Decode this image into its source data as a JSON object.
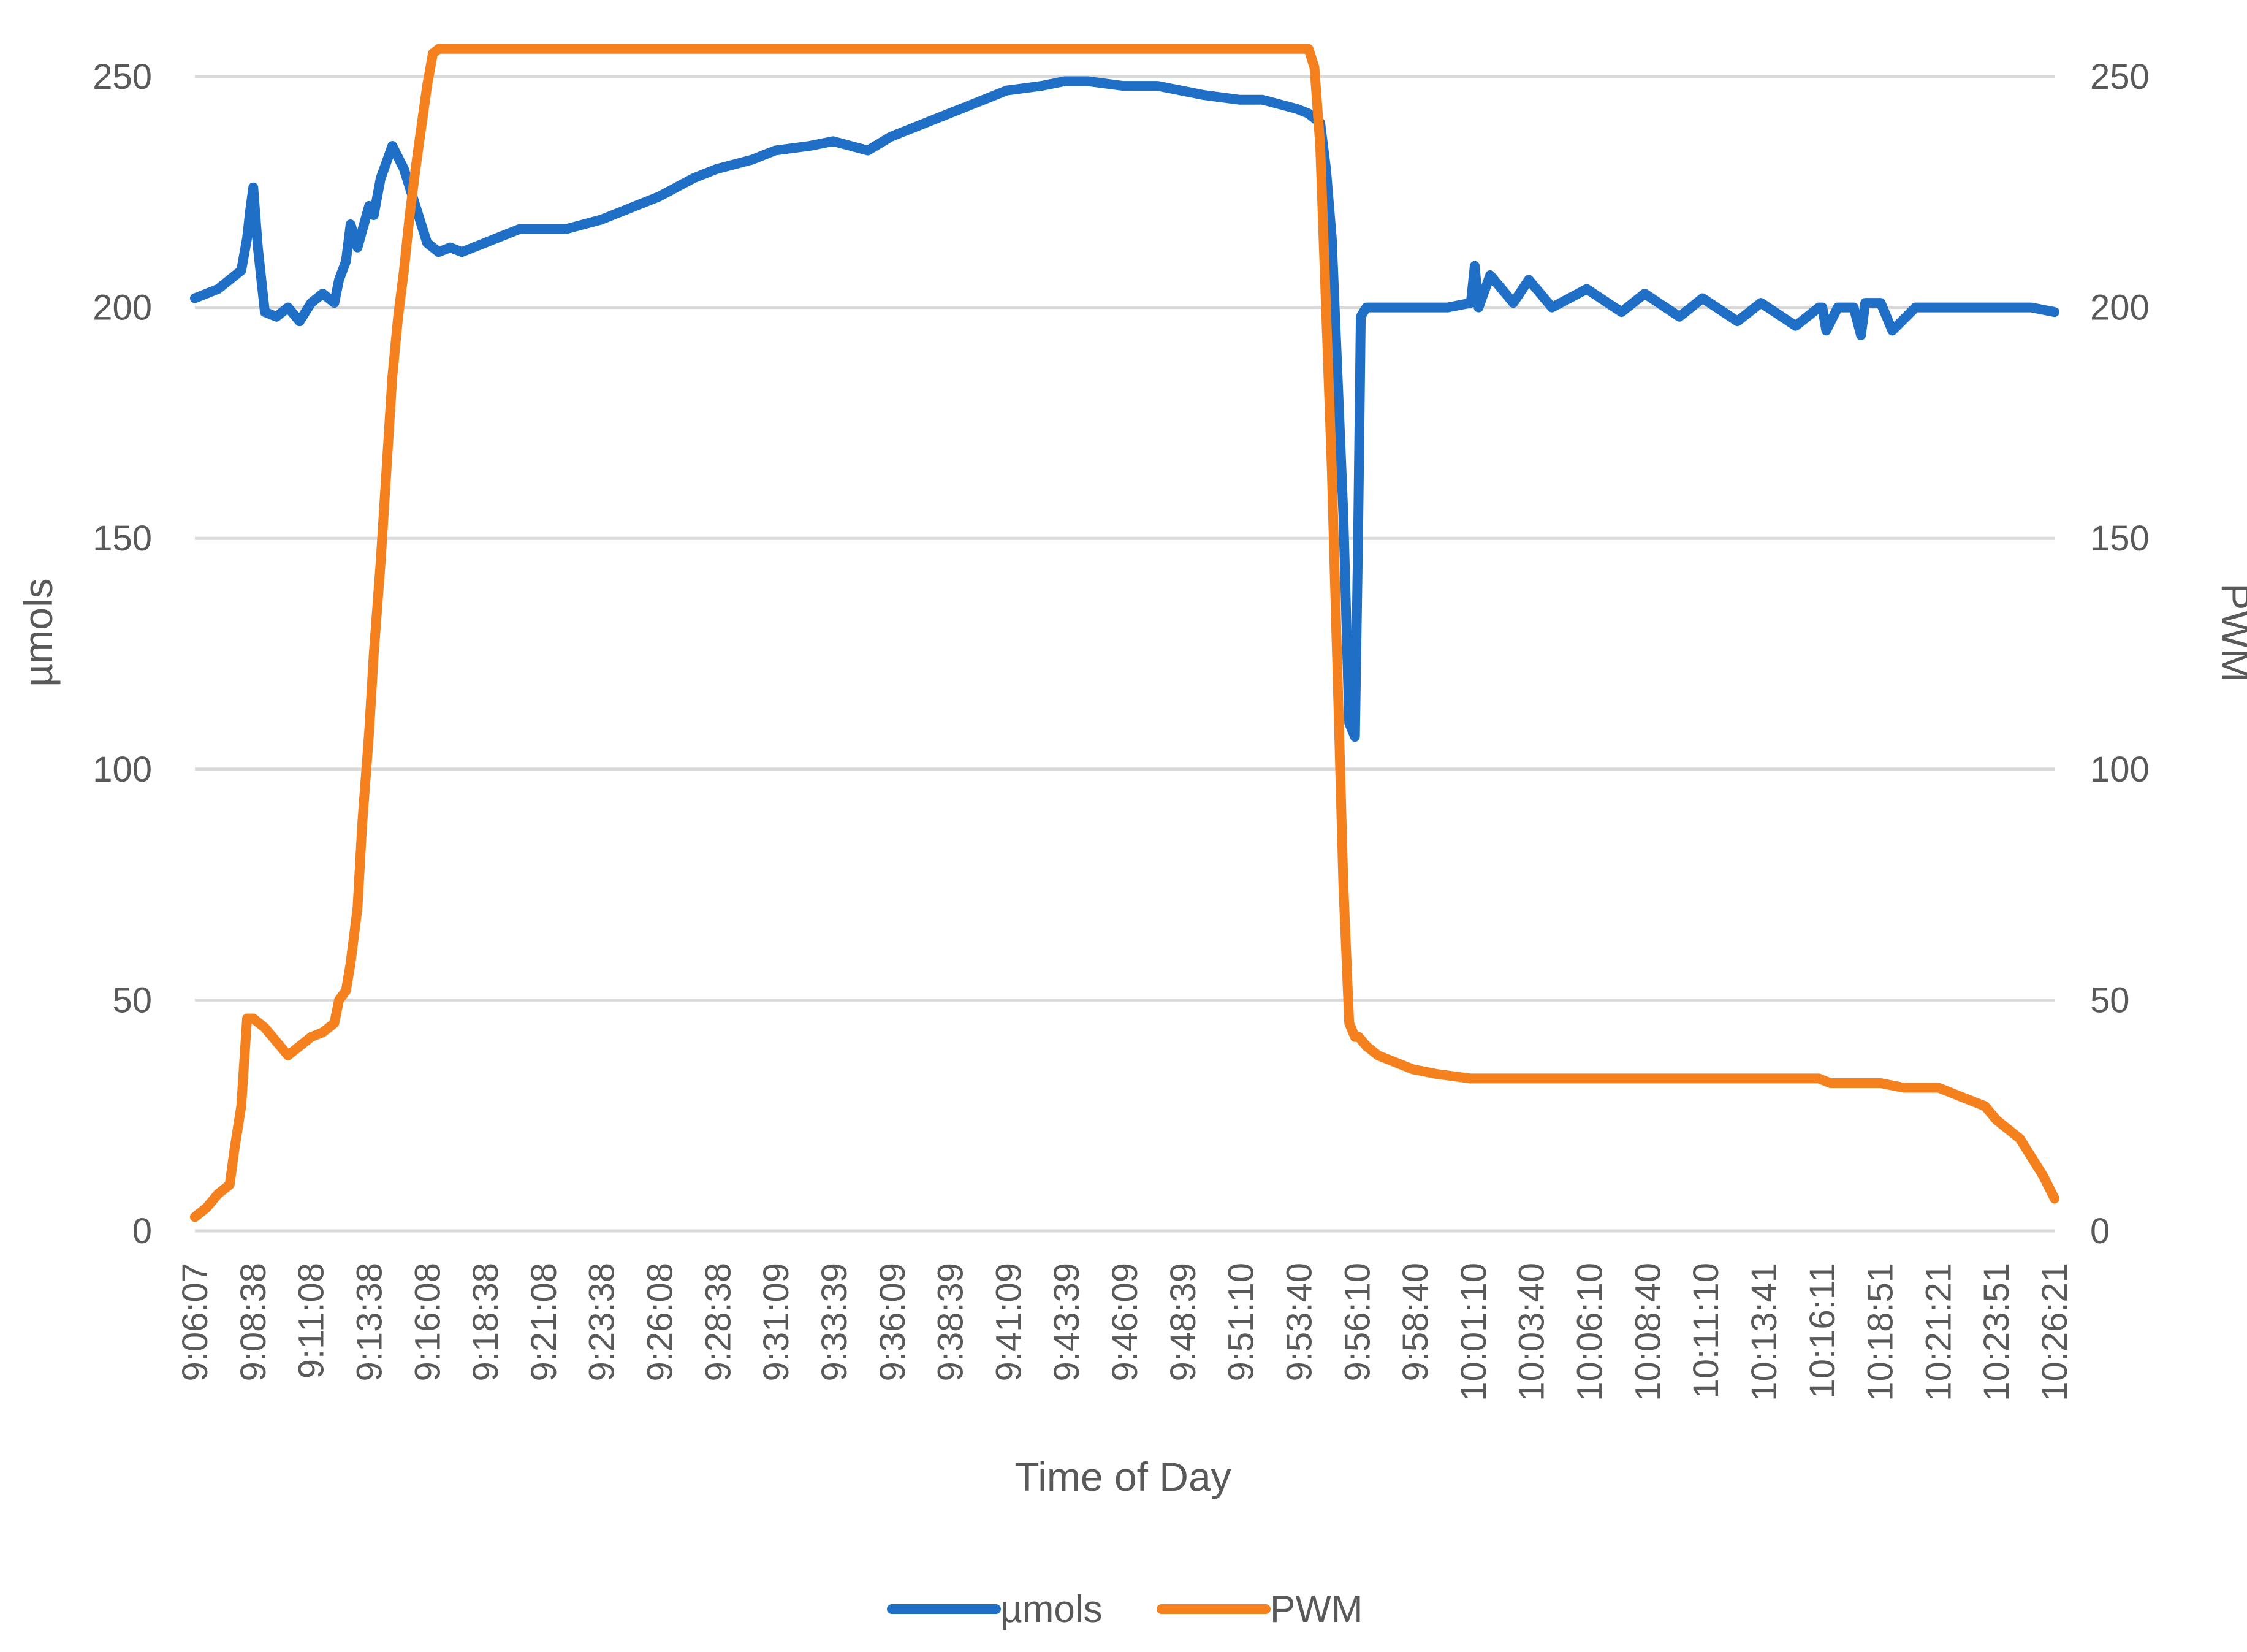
{
  "chart_data": {
    "type": "line",
    "title": "",
    "xlabel": "Time of Day",
    "ylabel": "µmols",
    "y2label": "PWM",
    "ylim": [
      0,
      250
    ],
    "y2lim": [
      0,
      250
    ],
    "yticks": [
      0,
      50,
      100,
      150,
      200,
      250
    ],
    "y2ticks": [
      0,
      50,
      100,
      150,
      200,
      250
    ],
    "grid": true,
    "legend_position": "bottom",
    "xlim_seconds": [
      32767,
      37581
    ],
    "x_tick_labels": [
      "9:06:07",
      "9:08:38",
      "9:11:08",
      "9:13:38",
      "9:16:08",
      "9:18:38",
      "9:21:08",
      "9:23:38",
      "9:26:08",
      "9:28:38",
      "9:31:09",
      "9:33:39",
      "9:36:09",
      "9:38:39",
      "9:41:09",
      "9:43:39",
      "9:46:09",
      "9:48:39",
      "9:51:10",
      "9:53:40",
      "9:56:10",
      "9:58:40",
      "10:01:10",
      "10:03:40",
      "10:06:10",
      "10:08:40",
      "10:11:10",
      "10:13:41",
      "10:16:11",
      "10:18:51",
      "10:21:21",
      "10:23:51",
      "10:26:21"
    ],
    "series": [
      {
        "name": "µmols",
        "axis": "left",
        "color": "#1f6fc6",
        "x": [
          "9:06:07",
          "9:06:37",
          "9:07:07",
          "9:07:37",
          "9:08:07",
          "9:08:22",
          "9:08:30",
          "9:08:38",
          "9:08:50",
          "9:09:08",
          "9:09:38",
          "9:10:08",
          "9:10:38",
          "9:11:08",
          "9:11:38",
          "9:12:08",
          "9:12:20",
          "9:12:38",
          "9:12:50",
          "9:13:08",
          "9:13:38",
          "9:13:50",
          "9:14:08",
          "9:14:38",
          "9:15:08",
          "9:15:38",
          "9:16:08",
          "9:16:38",
          "9:17:08",
          "9:17:38",
          "9:18:08",
          "9:18:38",
          "9:19:08",
          "9:20:08",
          "9:21:08",
          "9:22:08",
          "9:23:38",
          "9:24:38",
          "9:26:08",
          "9:27:38",
          "9:28:38",
          "9:30:09",
          "9:31:09",
          "9:32:39",
          "9:33:39",
          "9:35:09",
          "9:36:09",
          "9:37:39",
          "9:38:39",
          "9:40:09",
          "9:41:09",
          "9:42:39",
          "9:43:39",
          "9:44:39",
          "9:46:09",
          "9:47:39",
          "9:48:39",
          "9:49:39",
          "9:51:10",
          "9:52:10",
          "9:53:40",
          "9:54:10",
          "9:54:40",
          "9:54:55",
          "9:55:10",
          "9:55:25",
          "9:55:40",
          "9:55:55",
          "9:56:10",
          "9:56:18",
          "9:56:25",
          "9:56:32",
          "9:56:40",
          "9:57:10",
          "9:57:40",
          "9:58:40",
          "10:00:10",
          "10:01:10",
          "10:01:20",
          "10:01:30",
          "10:02:00",
          "10:03:00",
          "10:03:40",
          "10:04:40",
          "10:06:10",
          "10:07:40",
          "10:08:40",
          "10:10:10",
          "10:11:10",
          "10:12:40",
          "10:13:41",
          "10:15:11",
          "10:16:11",
          "10:16:20",
          "10:16:30",
          "10:17:00",
          "10:17:41",
          "10:18:00",
          "10:18:11",
          "10:18:51",
          "10:19:21",
          "10:20:21",
          "10:21:21",
          "10:22:21",
          "10:23:51",
          "10:25:21",
          "10:26:21"
        ],
        "values": [
          202,
          203,
          204,
          206,
          208,
          215,
          221,
          226,
          213,
          199,
          198,
          200,
          197,
          201,
          203,
          201,
          206,
          210,
          218,
          213,
          222,
          220,
          228,
          235,
          230,
          222,
          214,
          212,
          213,
          212,
          213,
          214,
          215,
          217,
          217,
          217,
          219,
          221,
          224,
          228,
          230,
          232,
          234,
          235,
          236,
          234,
          237,
          240,
          242,
          245,
          247,
          248,
          249,
          249,
          248,
          248,
          247,
          246,
          245,
          245,
          243,
          242,
          240,
          230,
          215,
          185,
          155,
          110,
          107,
          150,
          198,
          199,
          200,
          200,
          200,
          200,
          200,
          201,
          209,
          200,
          207,
          201,
          206,
          200,
          204,
          199,
          203,
          198,
          202,
          197,
          201,
          196,
          200,
          200,
          195,
          200,
          200,
          194,
          201,
          201,
          195,
          200,
          200,
          200,
          200,
          200,
          199
        ]
      },
      {
        "name": "PWM",
        "axis": "right",
        "color": "#f5801e",
        "x": [
          "9:06:07",
          "9:06:37",
          "9:07:07",
          "9:07:37",
          "9:07:50",
          "9:08:07",
          "9:08:22",
          "9:08:38",
          "9:09:08",
          "9:09:38",
          "9:10:08",
          "9:10:38",
          "9:11:08",
          "9:11:38",
          "9:12:08",
          "9:12:20",
          "9:12:38",
          "9:12:50",
          "9:13:08",
          "9:13:20",
          "9:13:38",
          "9:13:50",
          "9:14:08",
          "9:14:23",
          "9:14:38",
          "9:14:53",
          "9:15:08",
          "9:15:23",
          "9:15:38",
          "9:15:53",
          "9:16:08",
          "9:16:23",
          "9:16:38",
          "9:16:53",
          "9:17:08",
          "9:17:23",
          "9:17:38",
          "9:18:38",
          "9:21:08",
          "9:26:08",
          "9:31:09",
          "9:36:09",
          "9:41:09",
          "9:46:09",
          "9:51:10",
          "9:53:40",
          "9:54:10",
          "9:54:25",
          "9:54:40",
          "9:54:55",
          "9:55:10",
          "9:55:25",
          "9:55:40",
          "9:55:55",
          "9:56:10",
          "9:56:20",
          "9:56:30",
          "9:56:40",
          "9:57:10",
          "9:57:40",
          "9:58:40",
          "9:59:40",
          "10:01:10",
          "10:03:40",
          "10:06:10",
          "10:08:40",
          "10:11:10",
          "10:13:41",
          "10:16:11",
          "10:16:41",
          "10:17:11",
          "10:18:11",
          "10:18:51",
          "10:19:51",
          "10:21:21",
          "10:22:21",
          "10:23:21",
          "10:23:51",
          "10:24:51",
          "10:25:21",
          "10:25:51",
          "10:26:21"
        ],
        "values": [
          3,
          5,
          8,
          10,
          18,
          27,
          46,
          46,
          44,
          41,
          38,
          40,
          42,
          43,
          45,
          50,
          52,
          58,
          70,
          88,
          108,
          125,
          145,
          165,
          185,
          198,
          208,
          220,
          230,
          239,
          248,
          255,
          256,
          256,
          256,
          256,
          256,
          256,
          256,
          256,
          256,
          256,
          256,
          256,
          256,
          256,
          256,
          252,
          235,
          200,
          165,
          120,
          75,
          45,
          42,
          42,
          41,
          40,
          38,
          37,
          35,
          34,
          33,
          33,
          33,
          33,
          33,
          33,
          33,
          32,
          32,
          32,
          32,
          31,
          31,
          29,
          27,
          24,
          20,
          16,
          12,
          7
        ]
      }
    ]
  },
  "legend": {
    "items": [
      {
        "label": "µmols",
        "color": "#1f6fc6"
      },
      {
        "label": "PWM",
        "color": "#f5801e"
      }
    ]
  }
}
